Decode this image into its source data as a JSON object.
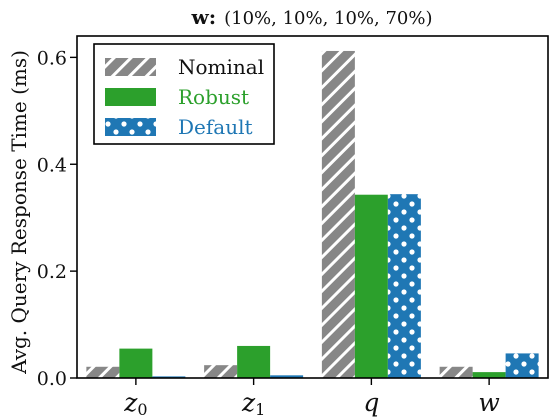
{
  "chart_data": {
    "type": "bar",
    "title_bold": "w",
    "title_colon": ":",
    "title_rest": "(10%, 10%, 10%, 70%)",
    "ylabel": "Avg. Query Response Time (ms)",
    "xlabel": "",
    "categories": [
      {
        "main": "z",
        "sub": "0"
      },
      {
        "main": "z",
        "sub": "1"
      },
      {
        "main": "q",
        "sub": ""
      },
      {
        "main": "w",
        "sub": ""
      }
    ],
    "ylim": [
      0,
      0.64
    ],
    "yticks": [
      0.0,
      0.2,
      0.4,
      0.6
    ],
    "ytick_labels": [
      "0.0",
      "0.2",
      "0.4",
      "0.6"
    ],
    "grid": false,
    "legend_position": "top-left",
    "series": [
      {
        "name": "Nominal",
        "color": "#878787",
        "pattern": "diagonal-hatch",
        "text_color": "#111111",
        "values": [
          0.021,
          0.024,
          0.612,
          0.021
        ]
      },
      {
        "name": "Robust",
        "color": "#2ca02c",
        "pattern": "solid",
        "text_color": "#2ca02c",
        "values": [
          0.055,
          0.06,
          0.343,
          0.011
        ]
      },
      {
        "name": "Default",
        "color": "#1f77b4",
        "pattern": "white-dots",
        "text_color": "#1f77b4",
        "values": [
          0.003,
          0.005,
          0.344,
          0.046
        ]
      }
    ]
  }
}
